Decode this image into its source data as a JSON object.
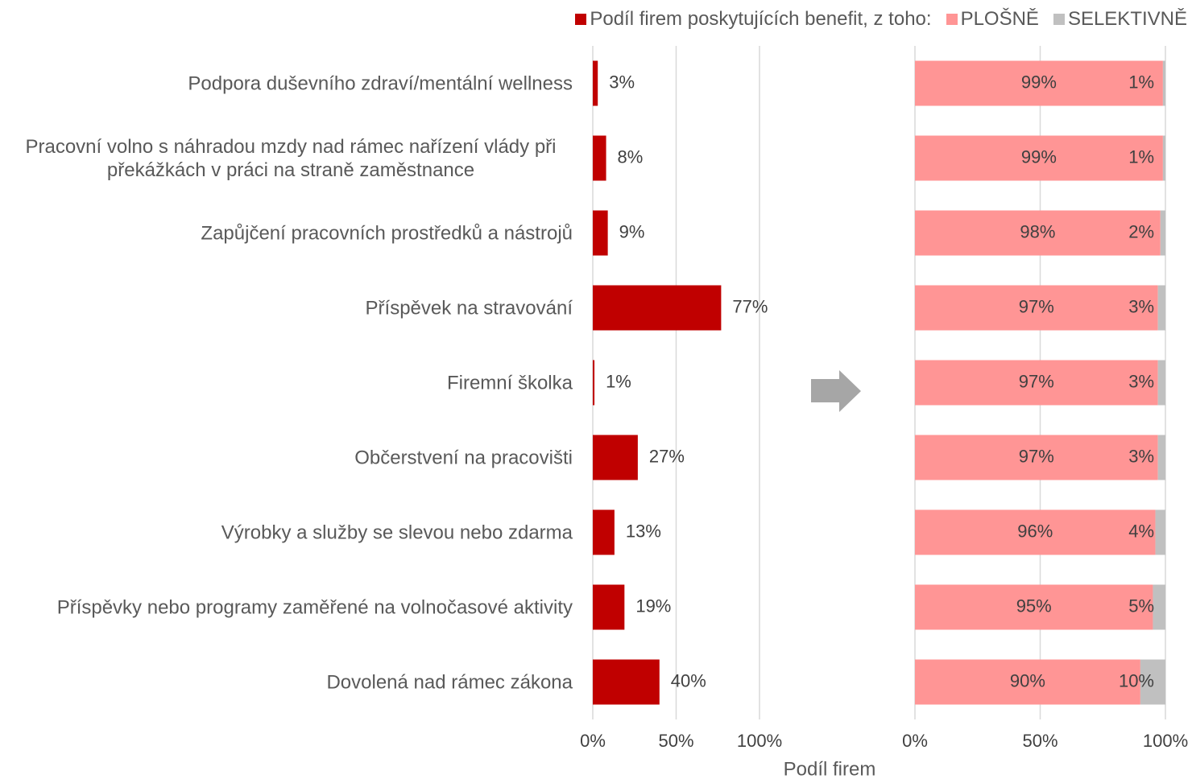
{
  "chart_data": [
    {
      "type": "bar",
      "categories": [
        "Podpora duševního zdraví/mentální wellness",
        "Pracovní volno s náhradou mzdy nad rámec nařízení vlády při překážkách v práci na straně zaměstnance",
        "Zapůjčení pracovních prostředků a nástrojů",
        "Příspěvek na stravování",
        "Firemní školka",
        "Občerstvení na pracovišti",
        "Výrobky a služby se slevou nebo zdarma",
        "Příspěvky nebo programy zaměřené na volnočasové aktivity",
        "Dovolená nad rámec zákona"
      ],
      "series": [
        {
          "name": "Podíl firem poskytujících benefit, z toho:",
          "color": "#c00000",
          "values": [
            3,
            8,
            9,
            77,
            1,
            27,
            13,
            19,
            40
          ],
          "value_labels": [
            "3%",
            "8%",
            "9%",
            "77%",
            "1%",
            "27%",
            "13%",
            "19%",
            "40%"
          ]
        }
      ],
      "xlim": [
        0,
        100
      ],
      "xticks": [
        {
          "value": 0,
          "label": "0%"
        },
        {
          "value": 50,
          "label": "50%"
        },
        {
          "value": 100,
          "label": "100%"
        }
      ],
      "xlabel": "Podíl firem",
      "grid": true
    },
    {
      "type": "stacked-bar",
      "series": [
        {
          "name": "PLOŠNĚ",
          "color": "#ff9595",
          "values": [
            99,
            99,
            98,
            97,
            97,
            97,
            96,
            95,
            90
          ],
          "value_labels": [
            "99%",
            "99%",
            "98%",
            "97%",
            "97%",
            "97%",
            "96%",
            "95%",
            "90%"
          ]
        },
        {
          "name": "SELEKTIVNĚ",
          "color": "#c0c0c0",
          "values": [
            1,
            1,
            2,
            3,
            3,
            3,
            4,
            5,
            10
          ],
          "value_labels": [
            "1%",
            "1%",
            "2%",
            "3%",
            "3%",
            "3%",
            "4%",
            "5%",
            "10%"
          ]
        }
      ],
      "xlim": [
        0,
        100
      ],
      "xticks": [
        {
          "value": 0,
          "label": "0%"
        },
        {
          "value": 50,
          "label": "50%"
        },
        {
          "value": 100,
          "label": "100%"
        }
      ],
      "grid": true
    }
  ]
}
